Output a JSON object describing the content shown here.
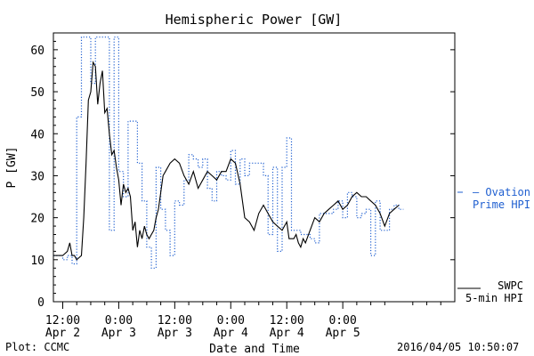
{
  "chart_data": {
    "type": "line",
    "title": "Hemispheric Power [GW]",
    "xlabel": "Date and Time",
    "ylabel": "P [GW]",
    "ylim": [
      0,
      64
    ],
    "xlim": [
      0,
      84
    ],
    "yticks": [
      0,
      10,
      20,
      30,
      40,
      50,
      60
    ],
    "x_unit": "hours since 2016-04-02 12:00",
    "xticks": [
      {
        "x": 0,
        "line1": "12:00",
        "line2": "Apr 2"
      },
      {
        "x": 12,
        "line1": "0:00",
        "line2": "Apr 3"
      },
      {
        "x": 24,
        "line1": "12:00",
        "line2": "Apr 3"
      },
      {
        "x": 36,
        "line1": "0:00",
        "line2": "Apr 4"
      },
      {
        "x": 48,
        "line1": "12:00",
        "line2": "Apr 4"
      },
      {
        "x": 60,
        "line1": "0:00",
        "line2": "Apr 5"
      }
    ],
    "series": [
      {
        "name": "Ovation Prime HPI",
        "legend_line1": "— Ovation",
        "legend_line2": "Prime HPI",
        "color": "#1f5fd0",
        "style": "dotted-step",
        "x": [
          -2,
          0,
          1,
          2,
          3,
          4,
          5,
          6,
          7,
          8,
          9,
          10,
          11,
          12,
          13,
          14,
          15,
          16,
          17,
          18,
          19,
          20,
          21,
          22,
          23,
          24,
          25,
          26,
          27,
          28,
          29,
          30,
          31,
          32,
          33,
          34,
          35,
          36,
          37,
          38,
          39,
          40,
          41,
          42,
          43,
          44,
          45,
          46,
          47,
          48,
          49,
          50,
          51,
          52,
          53,
          54,
          55,
          56,
          57,
          58,
          59,
          60,
          61,
          62,
          63,
          64,
          65,
          66,
          67,
          68,
          69,
          70,
          71,
          72
        ],
        "values": [
          11,
          10,
          11,
          9,
          44,
          63,
          63,
          52,
          63,
          63,
          63,
          17,
          63,
          31,
          25,
          43,
          43,
          33,
          24,
          13,
          8,
          32,
          22,
          17,
          11,
          24,
          23,
          29,
          35,
          34,
          32,
          34,
          27,
          24,
          31,
          30,
          29,
          36,
          28,
          34,
          30,
          33,
          33,
          33,
          30,
          16,
          32,
          12,
          32,
          39,
          17,
          17,
          16,
          16,
          15,
          14,
          21,
          21,
          21,
          22,
          24,
          20,
          26,
          25,
          20,
          21,
          22,
          11,
          24,
          17,
          17,
          22,
          23,
          22
        ]
      },
      {
        "name": "SWPC 5-min HPI",
        "legend_line1": "SWPC",
        "legend_line2": "5-min HPI",
        "color": "#000000",
        "style": "solid",
        "x": [
          -2,
          0,
          1,
          1.5,
          2,
          2.5,
          3,
          4,
          4.5,
          5,
          5.5,
          6,
          6.5,
          7,
          7.5,
          8,
          8.5,
          9,
          9.5,
          10,
          10.5,
          11,
          11.5,
          12,
          12.5,
          13,
          13.5,
          14,
          14.5,
          15,
          15.5,
          16,
          16.5,
          17,
          17.5,
          18,
          18.5,
          19,
          19.5,
          20,
          20.5,
          21,
          21.5,
          22,
          23,
          24,
          25,
          26,
          27,
          28,
          29,
          30,
          31,
          32,
          33,
          34,
          35,
          36,
          37,
          38,
          39,
          40,
          41,
          42,
          43,
          44,
          45,
          46,
          47,
          48,
          48.5,
          49,
          49.5,
          50,
          50.5,
          51,
          51.5,
          52,
          53,
          54,
          55,
          56,
          57,
          58,
          59,
          60,
          61,
          62,
          63,
          64,
          65,
          66,
          67,
          68,
          69,
          70,
          71,
          72
        ],
        "values": [
          11,
          11,
          12,
          14,
          11,
          11,
          10,
          11,
          20,
          33,
          48,
          50,
          57,
          56,
          47,
          52,
          55,
          45,
          46,
          40,
          35,
          36,
          32,
          29,
          23,
          28,
          26,
          27,
          25,
          17,
          19,
          13,
          17,
          15,
          18,
          16,
          15,
          16,
          17,
          20,
          22,
          26,
          30,
          31,
          33,
          34,
          33,
          30,
          28,
          31,
          27,
          29,
          31,
          30,
          29,
          31,
          31,
          34,
          33,
          28,
          20,
          19,
          17,
          21,
          23,
          21,
          19,
          18,
          17,
          19,
          15,
          15,
          15,
          16,
          14,
          13,
          15,
          14,
          17,
          20,
          19,
          21,
          22,
          23,
          24,
          22,
          23,
          25,
          26,
          25,
          25,
          24,
          23,
          21,
          18,
          21,
          22,
          23
        ]
      }
    ],
    "footer_left": "Plot: CCMC",
    "footer_right": "2016/04/05 10:50:07"
  }
}
